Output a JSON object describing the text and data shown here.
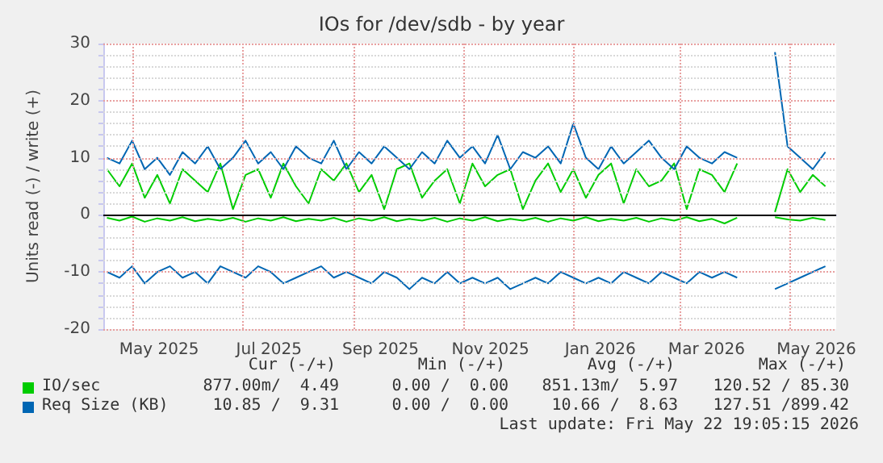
{
  "chart_data": {
    "type": "line",
    "title": "IOs for /dev/sdb - by year",
    "ylabel": "Units read (-) / write (+)",
    "x": [
      "2025-04-17",
      "2025-04-24",
      "2025-05-01",
      "2025-05-08",
      "2025-05-15",
      "2025-05-22",
      "2025-05-29",
      "2025-06-05",
      "2025-06-12",
      "2025-06-19",
      "2025-06-26",
      "2025-07-03",
      "2025-07-10",
      "2025-07-17",
      "2025-07-24",
      "2025-07-31",
      "2025-08-07",
      "2025-08-14",
      "2025-08-21",
      "2025-08-28",
      "2025-09-04",
      "2025-09-11",
      "2025-09-18",
      "2025-09-25",
      "2025-10-02",
      "2025-10-09",
      "2025-10-16",
      "2025-10-23",
      "2025-10-30",
      "2025-11-06",
      "2025-11-13",
      "2025-11-20",
      "2025-11-27",
      "2025-12-04",
      "2025-12-11",
      "2025-12-18",
      "2025-12-25",
      "2026-01-01",
      "2026-01-08",
      "2026-01-15",
      "2026-01-22",
      "2026-01-29",
      "2026-02-05",
      "2026-02-12",
      "2026-02-19",
      "2026-02-26",
      "2026-03-05",
      "2026-03-12",
      "2026-03-19",
      "2026-03-26",
      "2026-04-02",
      "2026-04-09",
      "2026-04-16",
      "2026-04-23",
      "2026-04-30",
      "2026-05-07",
      "2026-05-14",
      "2026-05-21"
    ],
    "series": [
      {
        "name": "IO/sec",
        "color": "#00cc00",
        "values": [
          8,
          5,
          9,
          3,
          7,
          2,
          8,
          6,
          4,
          9,
          1,
          7,
          8,
          3,
          9,
          5,
          2,
          8,
          6,
          9,
          4,
          7,
          1,
          8,
          9,
          3,
          6,
          8,
          2,
          9,
          5,
          7,
          8,
          1,
          6,
          9,
          4,
          8,
          3,
          7,
          9,
          2,
          8,
          5,
          6,
          9,
          1,
          8,
          7,
          4,
          9,
          null,
          null,
          0.5,
          8,
          4,
          7,
          5
        ]
      },
      {
        "color": "#00cc00",
        "values": [
          -0.5,
          -1,
          -0.3,
          -1.2,
          -0.6,
          -1,
          -0.4,
          -1.1,
          -0.7,
          -1,
          -0.5,
          -1.2,
          -0.6,
          -1,
          -0.4,
          -1.1,
          -0.7,
          -1,
          -0.5,
          -1.2,
          -0.6,
          -1,
          -0.4,
          -1.1,
          -0.7,
          -1,
          -0.5,
          -1.2,
          -0.6,
          -1,
          -0.4,
          -1.1,
          -0.7,
          -1,
          -0.5,
          -1.2,
          -0.6,
          -1,
          -0.4,
          -1.1,
          -0.7,
          -1,
          -0.5,
          -1.2,
          -0.6,
          -1,
          -0.4,
          -1.1,
          -0.7,
          -1.5,
          -0.5,
          null,
          null,
          -0.4,
          -0.8,
          -1,
          -0.5,
          -0.9
        ]
      },
      {
        "name": "Req Size (KB)",
        "color": "#0066b3",
        "values": [
          10,
          9,
          13,
          8,
          10,
          7,
          11,
          9,
          12,
          8,
          10,
          13,
          9,
          11,
          8,
          12,
          10,
          9,
          13,
          8,
          11,
          9,
          12,
          10,
          8,
          11,
          9,
          13,
          10,
          12,
          9,
          14,
          8,
          11,
          10,
          12,
          9,
          16,
          10,
          8,
          12,
          9,
          11,
          13,
          10,
          8,
          12,
          10,
          9,
          11,
          10,
          null,
          null,
          28.5,
          12,
          10,
          8,
          11
        ]
      },
      {
        "color": "#0066b3",
        "values": [
          -10,
          -11,
          -9,
          -12,
          -10,
          -9,
          -11,
          -10,
          -12,
          -9,
          -10,
          -11,
          -9,
          -10,
          -12,
          -11,
          -10,
          -9,
          -11,
          -10,
          -11,
          -12,
          -10,
          -11,
          -13,
          -11,
          -12,
          -10,
          -12,
          -11,
          -12,
          -11,
          -13,
          -12,
          -11,
          -12,
          -10,
          -11,
          -12,
          -11,
          -12,
          -10,
          -11,
          -12,
          -10,
          -11,
          -12,
          -10,
          -11,
          -10,
          -11,
          null,
          null,
          -13,
          -12,
          -11,
          -10,
          -9
        ]
      }
    ],
    "xlim": [
      "2025-04-15",
      "2026-05-27"
    ],
    "xticks": [
      {
        "value": "2025-05-01",
        "label": null
      },
      {
        "value": "2025-05-16",
        "label": "May 2025"
      },
      {
        "value": "2025-07-01",
        "label": null
      },
      {
        "value": "2025-07-16",
        "label": "Jul 2025"
      },
      {
        "value": "2025-09-01",
        "label": null
      },
      {
        "value": "2025-09-16",
        "label": "Sep 2025"
      },
      {
        "value": "2025-11-01",
        "label": null
      },
      {
        "value": "2025-11-16",
        "label": "Nov 2025"
      },
      {
        "value": "2026-01-01",
        "label": null
      },
      {
        "value": "2026-01-16",
        "label": "Jan 2026"
      },
      {
        "value": "2026-03-01",
        "label": null
      },
      {
        "value": "2026-03-16",
        "label": "Mar 2026"
      },
      {
        "value": "2026-05-01",
        "label": null
      },
      {
        "value": "2026-05-16",
        "label": "May 2026"
      }
    ],
    "ylim": [
      -20,
      30
    ],
    "yticks": [
      -20,
      {
        "value": -18,
        "label": null
      },
      {
        "value": -16,
        "label": null
      },
      {
        "value": -14,
        "label": null
      },
      {
        "value": -12,
        "label": null
      },
      -10,
      {
        "value": -8,
        "label": null
      },
      {
        "value": -6,
        "label": null
      },
      {
        "value": -4,
        "label": null
      },
      {
        "value": -2,
        "label": null
      },
      0,
      {
        "value": 2,
        "label": null
      },
      {
        "value": 4,
        "label": null
      },
      {
        "value": 6,
        "label": null
      },
      {
        "value": 8,
        "label": null
      },
      10,
      {
        "value": 12,
        "label": null
      },
      {
        "value": 14,
        "label": null
      },
      {
        "value": 16,
        "label": null
      },
      {
        "value": 18,
        "label": null
      },
      20,
      {
        "value": 22,
        "label": null
      },
      {
        "value": 24,
        "label": null
      },
      {
        "value": 26,
        "label": null
      },
      {
        "value": 28,
        "label": null
      },
      30
    ],
    "ref_lines": [
      {
        "axis": "y",
        "value": 0,
        "color": "#000000"
      }
    ],
    "grid": true,
    "legend": "bottom",
    "line_style": "solid",
    "marker": "none",
    "annotations": [
      "Cur (-/+)",
      "Min (-/+)",
      "Avg (-/+)",
      "Max (-/+)",
      "877.00m/  4.49",
      "0.00 /  0.00",
      "851.13m/  5.97",
      "120.52 / 85.30",
      "10.85 /  9.31",
      "0.00 /  0.00",
      "10.66 /  8.63",
      "127.51 /899.42",
      "Last update: Fri May 22 19:05:15 2026"
    ]
  }
}
